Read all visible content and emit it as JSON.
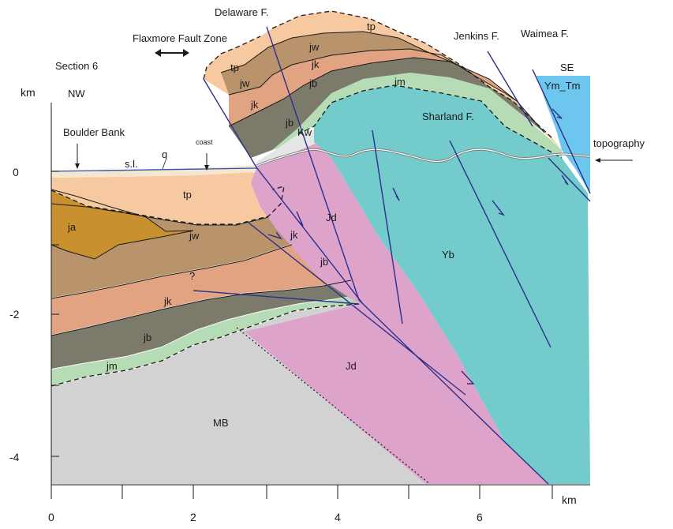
{
  "section": "Section 6",
  "directions": {
    "left": "NW",
    "right": "SE"
  },
  "axes": {
    "y_unit": "km",
    "x_unit": "km",
    "y_ticks": [
      "0",
      "-2",
      "-4"
    ],
    "x_ticks": [
      "0",
      "2",
      "4",
      "6"
    ]
  },
  "faults": {
    "delaware": "Delaware F.",
    "flaxmore": "Flaxmore Fault Zone",
    "jenkins": "Jenkins F.",
    "waimea": "Waimea F.",
    "sharland": "Sharland F."
  },
  "annotations": {
    "boulder_bank": "Boulder Bank",
    "sea_level": "s.l.",
    "q": "q",
    "coast": "coast",
    "topography": "topography",
    "uncertain": "?"
  },
  "units": {
    "tp": "tp",
    "jw": "jw",
    "jk": "jk",
    "jb": "jb",
    "jm": "jm",
    "ja": "ja",
    "jd": "Jd",
    "kw": "Kw",
    "yb": "Yb",
    "ym_tm": "Ym_Tm",
    "mb": "MB"
  },
  "colors": {
    "tp": "#f6c9a0",
    "jw": "#b9936c",
    "jk": "#e2a382",
    "jb": "#7c7b6b",
    "jm": "#b5dcb5",
    "ja": "#c8902e",
    "jd": "#dea3cb",
    "yb": "#73cbcb",
    "ym_tm": "#6cc6ee",
    "mb": "#d2d2d2",
    "kw": "#e6e6e6",
    "fault": "#2b2e8c"
  }
}
